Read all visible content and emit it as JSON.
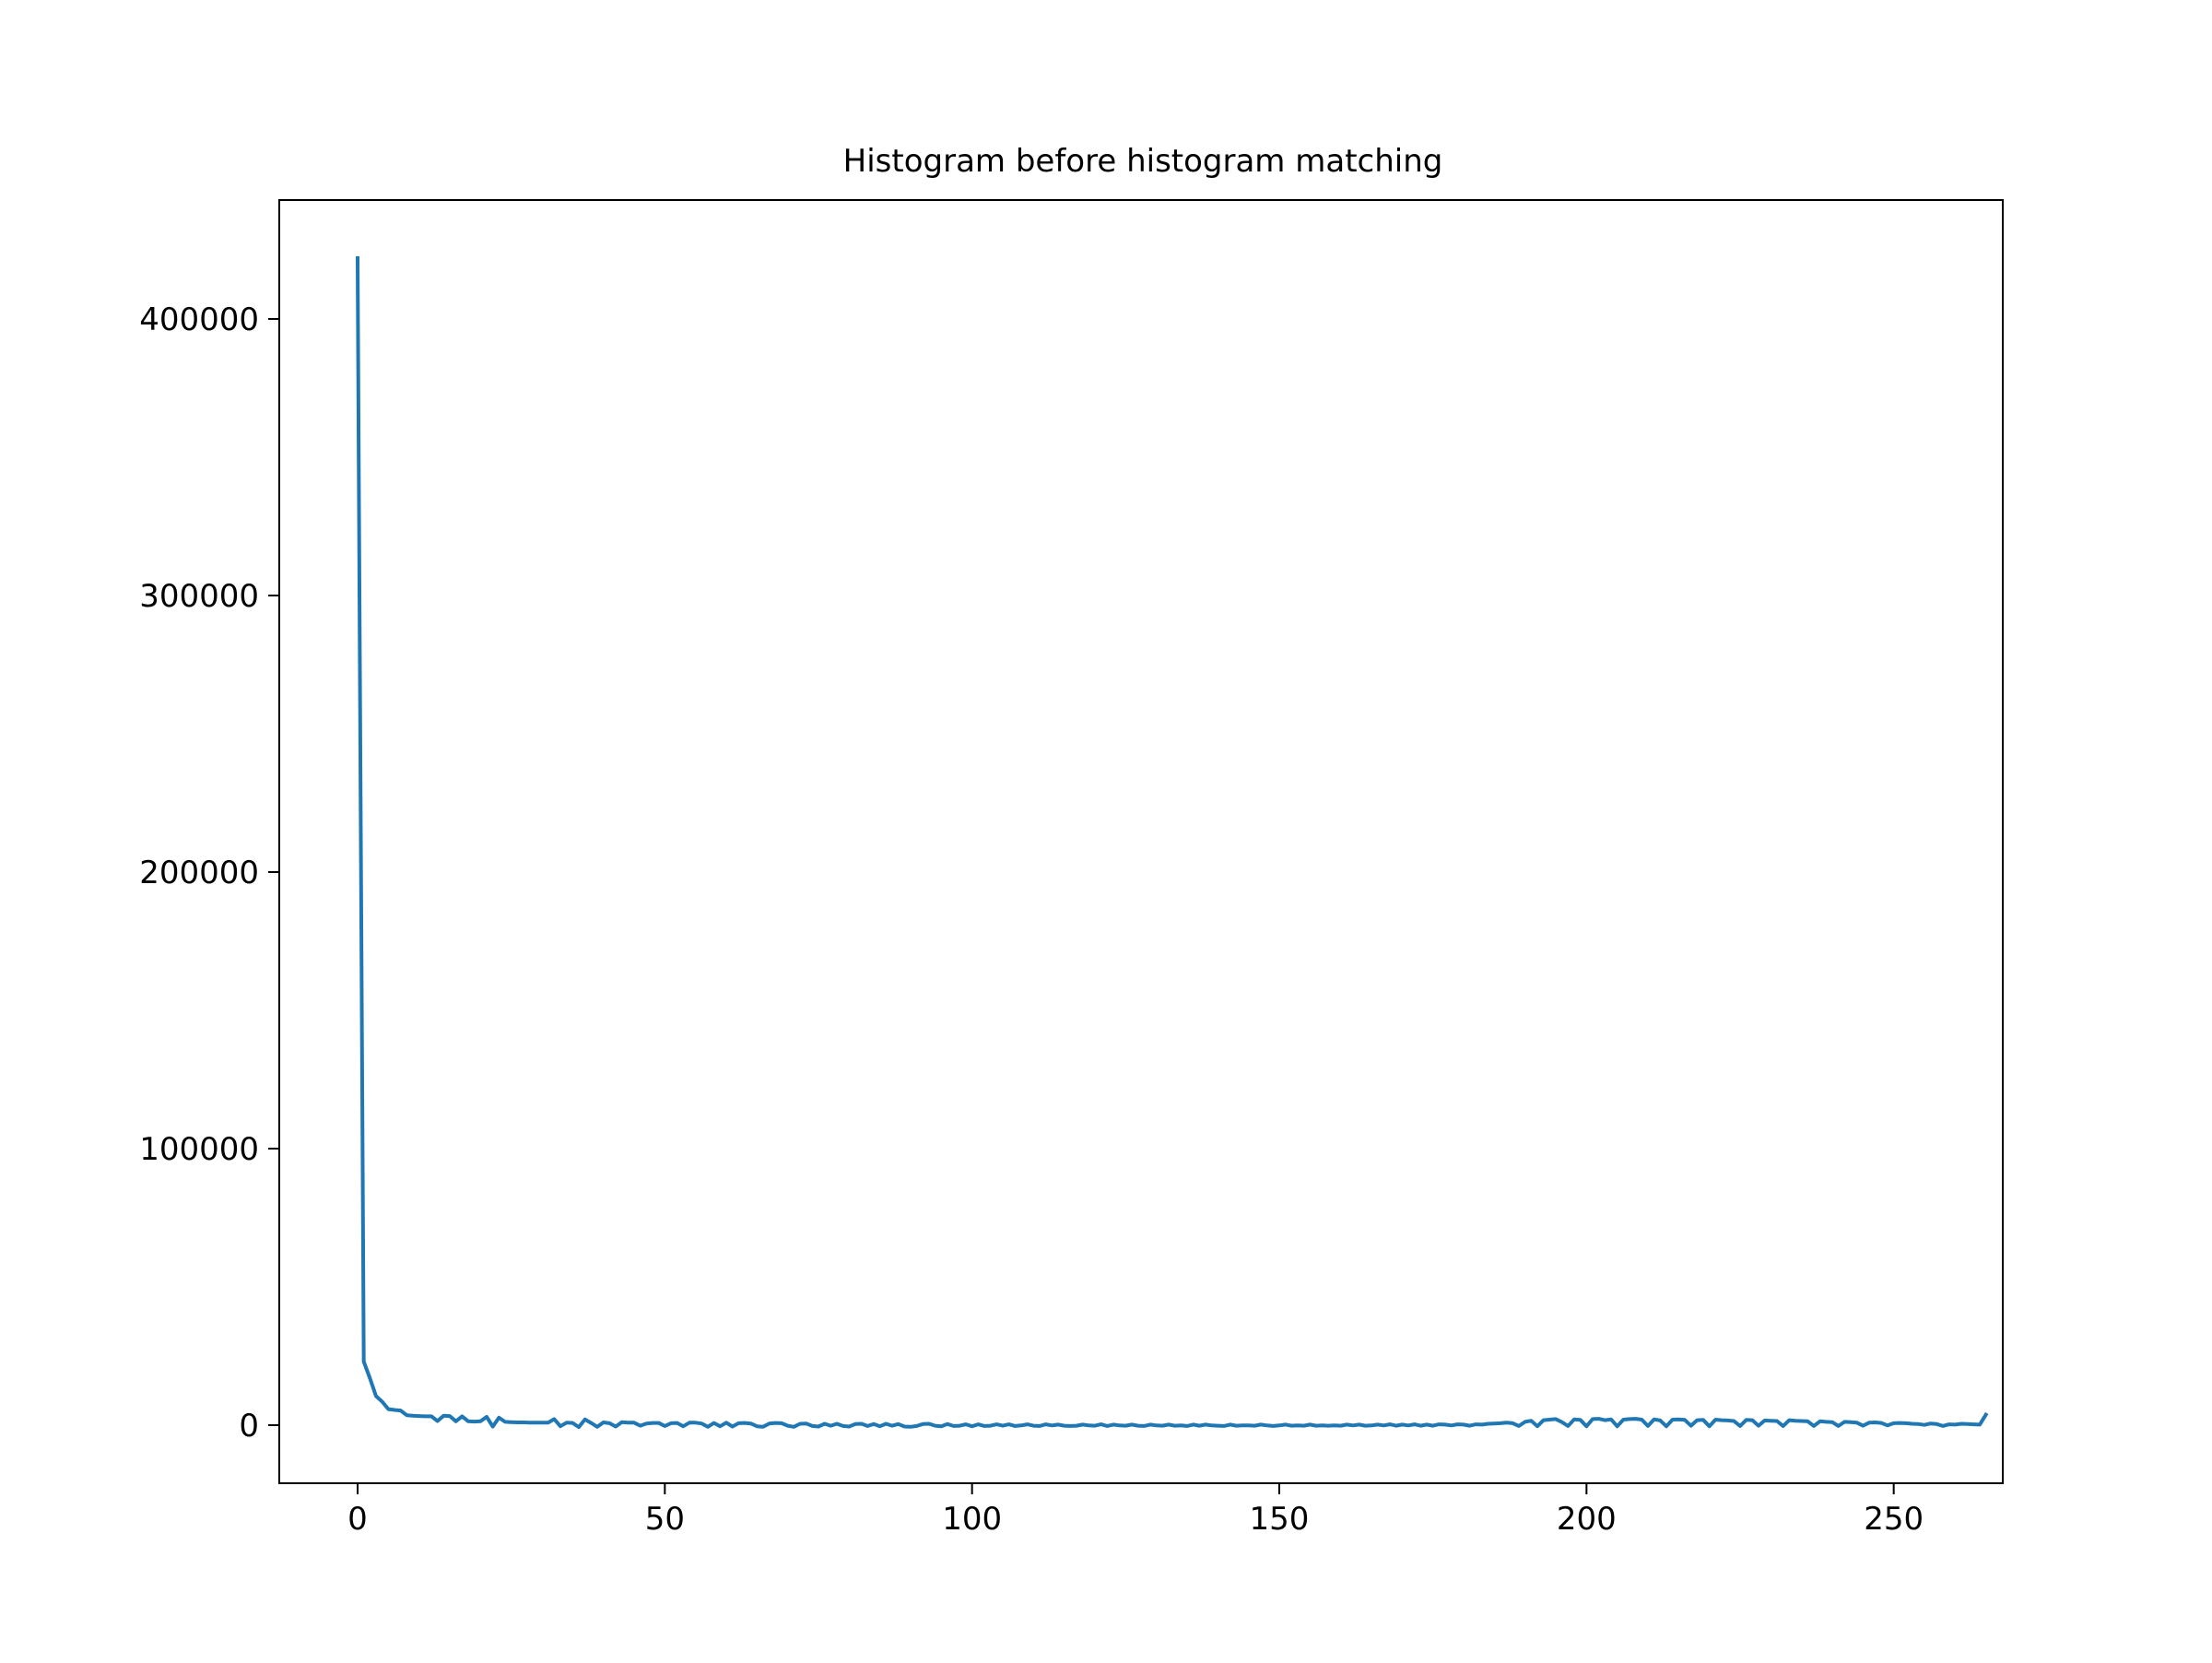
{
  "chart_data": {
    "type": "line",
    "title": "Histogram before histogram matching",
    "xlabel": "",
    "ylabel": "",
    "xlim": [
      -12.75,
      267.75
    ],
    "ylim": [
      -21000,
      443000
    ],
    "x_ticks": [
      0,
      50,
      100,
      150,
      200,
      250
    ],
    "x_tick_labels": [
      "0",
      "50",
      "100",
      "150",
      "200",
      "250"
    ],
    "y_ticks": [
      0,
      100000,
      200000,
      300000,
      400000
    ],
    "y_tick_labels": [
      "0",
      "100000",
      "200000",
      "300000",
      "400000"
    ],
    "grid": false,
    "legend": "none",
    "series_color": "#1f77b4",
    "series": [
      {
        "values": [
          422000,
          23000,
          17000,
          10500,
          8500,
          5800,
          5500,
          5300,
          3600,
          3400,
          3300,
          3200,
          3200,
          1500,
          3400,
          3300,
          1400,
          3200,
          1400,
          1300,
          1400,
          3000,
          -500,
          2700,
          1200,
          1100,
          1000,
          1000,
          900,
          900,
          900,
          900,
          2200,
          -400,
          900,
          800,
          -700,
          2100,
          800,
          -600,
          1000,
          700,
          -500,
          1100,
          900,
          900,
          -200,
          600,
          800,
          800,
          -300,
          700,
          800,
          -400,
          900,
          900,
          600,
          -600,
          800,
          -400,
          900,
          -500,
          700,
          800,
          600,
          -400,
          -600,
          600,
          800,
          700,
          -200,
          -600,
          500,
          600,
          -300,
          -500,
          500,
          -200,
          500,
          -300,
          -500,
          400,
          500,
          -300,
          400,
          -400,
          500,
          -200,
          400,
          -500,
          -600,
          -300,
          400,
          500,
          -200,
          -400,
          400,
          -300,
          -200,
          300,
          -400,
          300,
          -300,
          -200,
          300,
          -200,
          300,
          -300,
          -100,
          300,
          -200,
          -300,
          300,
          -100,
          200,
          -200,
          -300,
          -200,
          200,
          -100,
          -200,
          300,
          -300,
          200,
          -100,
          -200,
          200,
          -200,
          -300,
          200,
          -100,
          -200,
          200,
          -200,
          -100,
          -300,
          200,
          -200,
          200,
          -100,
          -200,
          -300,
          200,
          -200,
          -100,
          -100,
          -200,
          200,
          -100,
          -300,
          -100,
          200,
          -200,
          -100,
          -200,
          200,
          -200,
          -100,
          -200,
          -100,
          -200,
          200,
          -100,
          200,
          -200,
          -100,
          200,
          -100,
          300,
          -200,
          200,
          -100,
          300,
          -200,
          200,
          -200,
          300,
          200,
          -100,
          300,
          200,
          -200,
          300,
          200,
          500,
          600,
          700,
          900,
          700,
          -300,
          1200,
          1600,
          -400,
          1800,
          2000,
          2200,
          1100,
          -300,
          2100,
          1900,
          -400,
          2200,
          2300,
          1800,
          2100,
          -400,
          2000,
          2200,
          2300,
          2000,
          -300,
          2100,
          1700,
          -400,
          2000,
          2100,
          1900,
          -200,
          1800,
          1900,
          -400,
          2000,
          1800,
          1700,
          1500,
          -300,
          1900,
          1800,
          -200,
          1700,
          1600,
          1500,
          -300,
          1800,
          1600,
          1500,
          1400,
          -300,
          1400,
          1200,
          1100,
          -300,
          1200,
          1100,
          900,
          -200,
          900,
          1000,
          800,
          -100,
          700,
          800,
          700,
          500,
          400,
          100,
          600,
          400,
          -300,
          300,
          200,
          500,
          400,
          300,
          200,
          3800
        ]
      }
    ]
  }
}
